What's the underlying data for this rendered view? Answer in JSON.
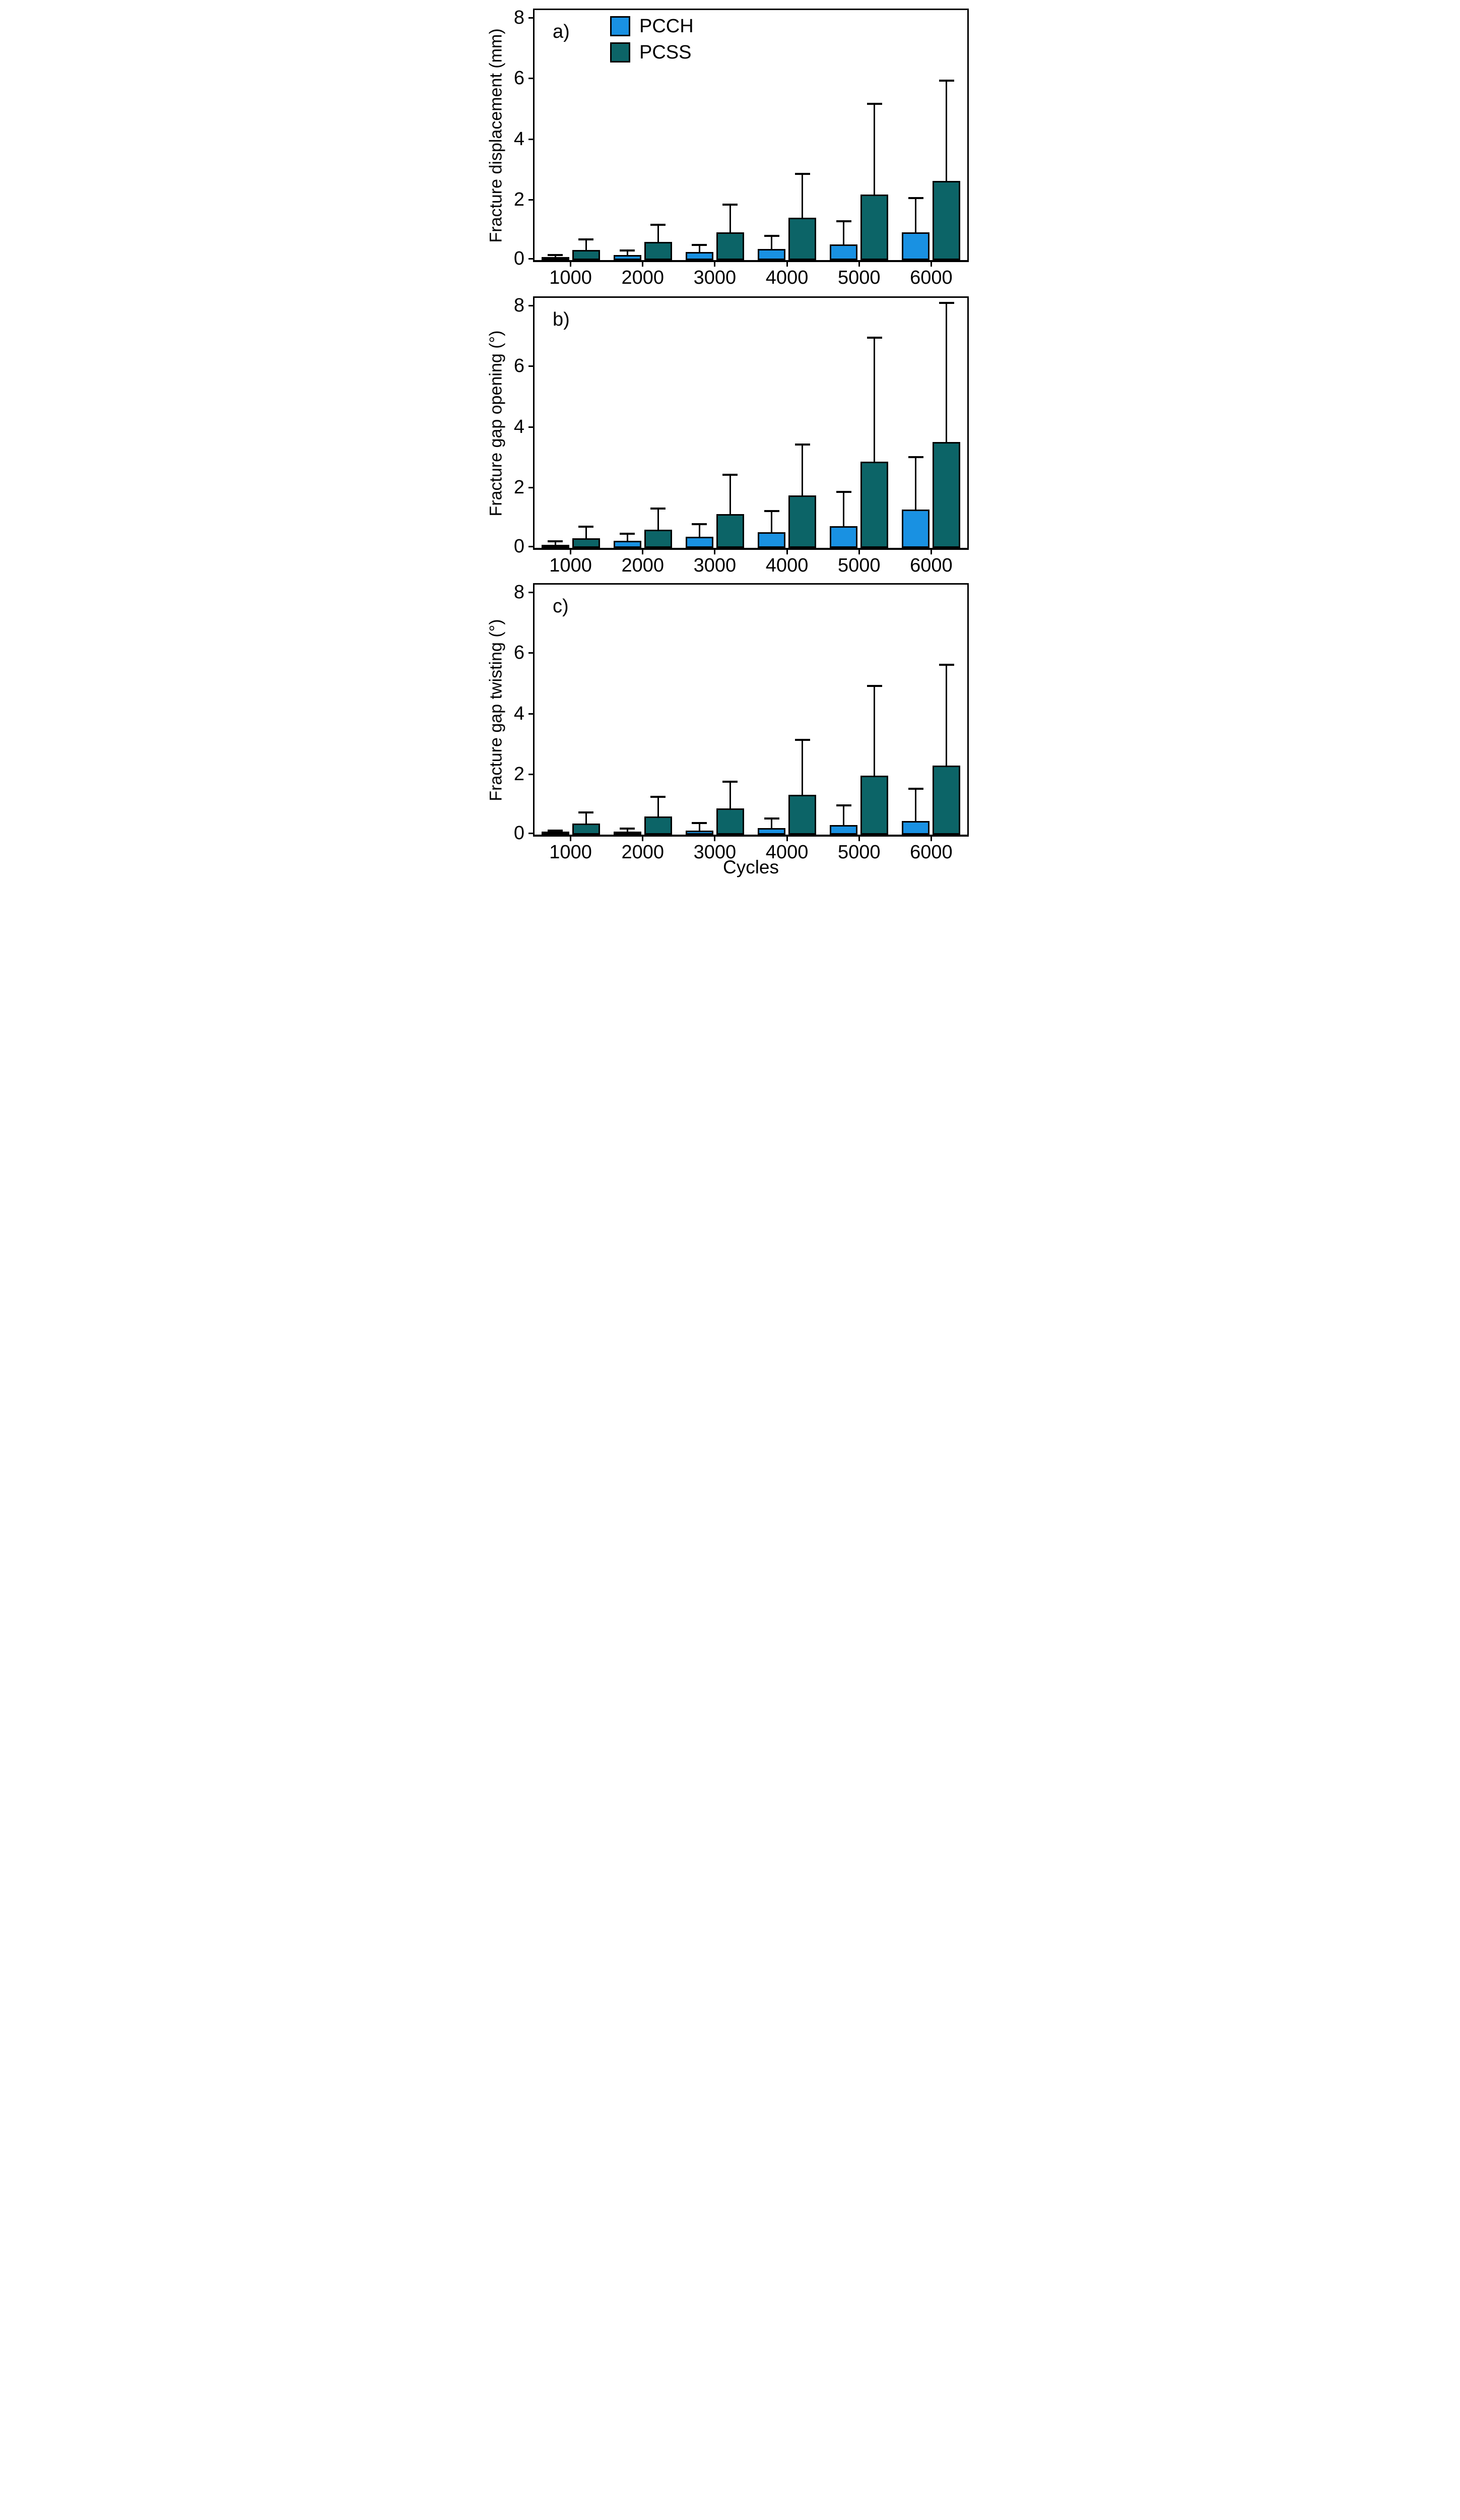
{
  "x_axis": {
    "label": "Cycles",
    "categories": [
      "1000",
      "2000",
      "3000",
      "4000",
      "5000",
      "6000"
    ]
  },
  "legend": {
    "items": [
      "PCCH",
      "PCSS"
    ]
  },
  "colors": {
    "pcch": "#1991E2",
    "pcss": "#0C6467",
    "frame": "#000000",
    "background": "#FFFFFF"
  },
  "y_axis": {
    "ticks": [
      0,
      2,
      4,
      6,
      8
    ]
  },
  "chart_data": [
    {
      "type": "bar",
      "panel_label": "a)",
      "ylabel": "Fracture displacement (mm)",
      "xlabel": "Cycles",
      "categories": [
        "1000",
        "2000",
        "3000",
        "4000",
        "5000",
        "6000"
      ],
      "ylim": [
        0,
        8.25
      ],
      "yticks": [
        0,
        2,
        4,
        6,
        8
      ],
      "grid": false,
      "legend_position": "upper-left-inside",
      "series": [
        {
          "name": "PCCH",
          "color": "#1991E2",
          "values": [
            0.08,
            0.16,
            0.26,
            0.37,
            0.52,
            0.92
          ],
          "error_top": [
            0.17,
            0.31,
            0.5,
            0.8,
            1.28,
            2.04
          ]
        },
        {
          "name": "PCSS",
          "color": "#0C6467",
          "values": [
            0.33,
            0.6,
            0.92,
            1.4,
            2.17,
            2.61
          ],
          "error_top": [
            0.69,
            1.16,
            1.83,
            2.85,
            5.15,
            5.92
          ]
        }
      ]
    },
    {
      "type": "bar",
      "panel_label": "b)",
      "ylabel": "Fracture gap opening (°)",
      "xlabel": "Cycles",
      "categories": [
        "1000",
        "2000",
        "3000",
        "4000",
        "5000",
        "6000"
      ],
      "ylim": [
        0,
        8.25
      ],
      "yticks": [
        0,
        2,
        4,
        6,
        8
      ],
      "grid": false,
      "series": [
        {
          "name": "PCCH",
          "color": "#1991E2",
          "values": [
            0.05,
            0.24,
            0.37,
            0.52,
            0.72,
            1.26
          ],
          "error_top": [
            0.22,
            0.46,
            0.78,
            1.22,
            1.84,
            3.0
          ]
        },
        {
          "name": "PCSS",
          "color": "#0C6467",
          "values": [
            0.31,
            0.6,
            1.12,
            1.73,
            2.85,
            3.5
          ],
          "error_top": [
            0.7,
            1.29,
            2.42,
            3.41,
            6.94,
            8.08
          ]
        }
      ]
    },
    {
      "type": "bar",
      "panel_label": "c)",
      "ylabel": "Fracture gap twisting (°)",
      "xlabel": "Cycles",
      "categories": [
        "1000",
        "2000",
        "3000",
        "4000",
        "5000",
        "6000"
      ],
      "ylim": [
        0,
        8.25
      ],
      "yticks": [
        0,
        2,
        4,
        6,
        8
      ],
      "grid": false,
      "series": [
        {
          "name": "PCCH",
          "color": "#1991E2",
          "values": [
            0.04,
            0.07,
            0.14,
            0.22,
            0.31,
            0.45
          ],
          "error_top": [
            0.13,
            0.2,
            0.38,
            0.53,
            0.97,
            1.52
          ]
        },
        {
          "name": "PCSS",
          "color": "#0C6467",
          "values": [
            0.37,
            0.6,
            0.86,
            1.32,
            1.95,
            2.28
          ],
          "error_top": [
            0.74,
            1.24,
            1.74,
            3.12,
            4.9,
            5.6
          ]
        }
      ]
    }
  ]
}
